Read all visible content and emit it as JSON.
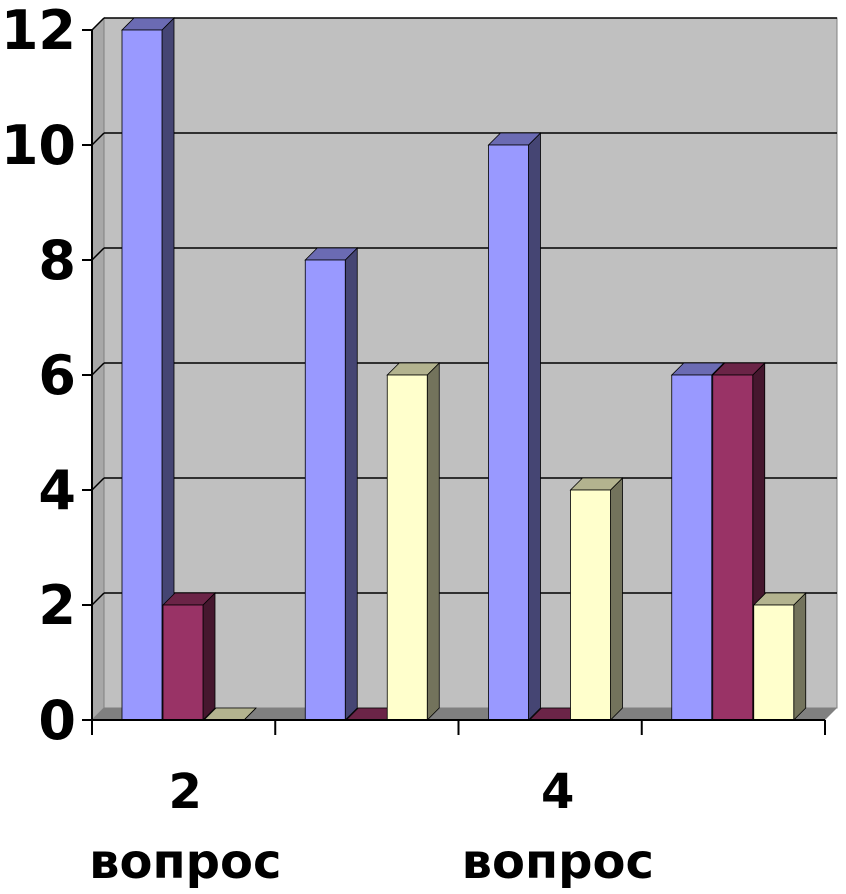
{
  "chart_data": {
    "type": "bar",
    "style": "3d-clustered-column",
    "categories": [
      "",
      "",
      "",
      ""
    ],
    "category_labels_shown": [
      {
        "line1": "2",
        "line2": "вопрос"
      },
      {
        "line1": "4",
        "line2": "вопрос"
      }
    ],
    "series": [
      {
        "color": "#9999FF",
        "values": [
          12,
          8,
          10,
          6
        ]
      },
      {
        "color": "#993366",
        "values": [
          2,
          0,
          0,
          6
        ]
      },
      {
        "color": "#FFFFCC",
        "values": [
          0,
          6,
          4,
          2
        ]
      }
    ],
    "ylim": [
      0,
      12
    ],
    "yticks": [
      "0",
      "2",
      "4",
      "6",
      "8",
      "10",
      "12"
    ],
    "grid": true,
    "legend": "none",
    "title": "",
    "xlabel": "",
    "ylabel": ""
  },
  "colors": {
    "wall": "#C0C0C0",
    "floor": "#808080",
    "gridline": "#000000"
  }
}
